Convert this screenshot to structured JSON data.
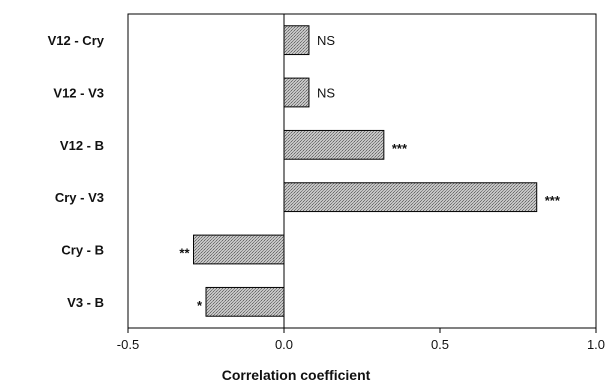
{
  "chart_data": {
    "type": "bar",
    "orientation": "horizontal",
    "categories": [
      "V12 - Cry",
      "V12 - V3",
      "V12 - B",
      "Cry - V3",
      "Cry - B",
      "V3 - B"
    ],
    "values": [
      0.08,
      0.08,
      0.32,
      0.81,
      -0.29,
      -0.25
    ],
    "annotations": [
      "NS",
      "NS",
      "***",
      "***",
      "**",
      "*"
    ],
    "xlabel": "Correlation coefficient",
    "xlim": [
      -0.5,
      1.0
    ],
    "xticks": [
      -0.5,
      0.0,
      0.5,
      1.0
    ],
    "xtick_labels": [
      "-0.5",
      "0.0",
      "0.5",
      "1.0"
    ],
    "grid": false,
    "bar_fill": "#b4b4b4"
  }
}
